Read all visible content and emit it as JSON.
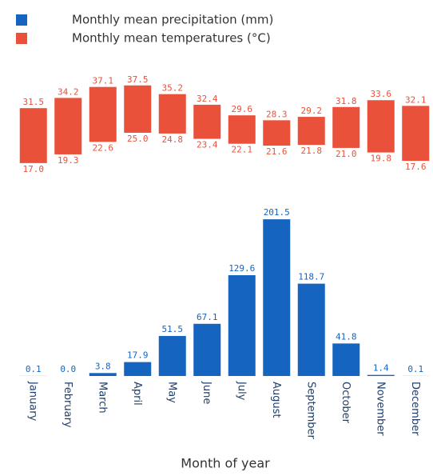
{
  "chart_data": [
    {
      "type": "range-bar",
      "series": [
        {
          "name": "Monthly mean temperatures (°C)",
          "color": "#e9513b",
          "values": [
            31.5,
            34.2,
            37.1,
            37.5,
            35.2,
            32.4,
            29.6,
            28.3,
            29.2,
            31.8,
            33.6,
            32.1
          ],
          "value_labels": [
            "31.5",
            "34.2",
            "37.1",
            "37.5",
            "35.2",
            "32.4",
            "29.6",
            "28.3",
            "29.2",
            "31.8",
            "33.6",
            "32.1"
          ],
          "low": [
            17.0,
            19.3,
            22.6,
            25.0,
            24.8,
            23.4,
            22.1,
            21.6,
            21.8,
            21.0,
            19.8,
            17.6
          ],
          "low_labels": [
            "17.0",
            "19.3",
            "22.6",
            "25.0",
            "24.8",
            "23.4",
            "22.1",
            "21.6",
            "21.8",
            "21.0",
            "19.8",
            "17.6"
          ]
        }
      ],
      "ylim": [
        10,
        44
      ]
    },
    {
      "type": "bar",
      "x_label": "Month of year",
      "categories": [
        "January",
        "February",
        "March",
        "April",
        "May",
        "June",
        "July",
        "August",
        "September",
        "October",
        "November",
        "December"
      ],
      "series": [
        {
          "name": "Monthly mean precipitation (mm)",
          "color": "#1565c0",
          "values": [
            0.1,
            0.0,
            3.8,
            17.9,
            51.5,
            67.1,
            129.6,
            201.5,
            118.7,
            41.8,
            1.4,
            0.1
          ],
          "value_labels": [
            "0.1",
            "0.0",
            "3.8",
            "17.9",
            "51.5",
            "67.1",
            "129.6",
            "201.5",
            "118.7",
            "41.8",
            "1.4",
            "0.1"
          ]
        }
      ],
      "ylim": [
        0,
        216
      ]
    }
  ]
}
